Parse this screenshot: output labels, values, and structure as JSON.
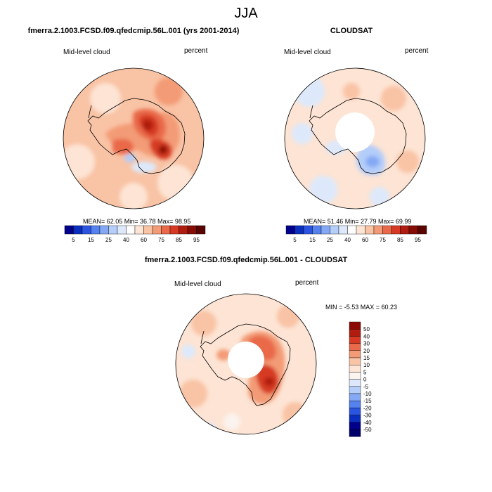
{
  "main_title": "JJA",
  "panels": [
    {
      "title": "fmerra.2.1003.FCSD.f09.qfedcmip.56L.001 (yrs 2001-2014)",
      "left_label": "Mid-level cloud",
      "right_label": "percent",
      "stats": "MEAN=  62.05   Min=  36.78   Max=  98.95"
    },
    {
      "title": "CLOUDSAT",
      "left_label": "Mid-level cloud",
      "right_label": "percent",
      "stats": "MEAN=  51.46   Min=  27.79   Max=  69.99"
    },
    {
      "title": "fmerra.2.1003.FCSD.f09.qfedcmip.56L.001 - CLOUDSAT",
      "left_label": "Mid-level cloud",
      "right_label": "percent",
      "stats": "MIN =  -5.53 MAX =  60.23"
    }
  ],
  "chart_data": [
    {
      "type": "heatmap",
      "title": "fmerra.2.1003.FCSD.f09.qfedcmip.56L.001 (yrs 2001-2014)",
      "projection": "south polar stereographic",
      "variable": "Mid-level cloud",
      "units": "percent",
      "stats": {
        "mean": 62.05,
        "min": 36.78,
        "max": 98.95
      },
      "colorbar": {
        "orientation": "horizontal",
        "tick_labels": [
          "5",
          "15",
          "25",
          "40",
          "60",
          "75",
          "85",
          "95"
        ],
        "colors": [
          "#00008b",
          "#0a2fbe",
          "#2b55e0",
          "#5582ee",
          "#84a8f4",
          "#b4cdf9",
          "#dde9fb",
          "#ffffff",
          "#fde4d4",
          "#f9c3a5",
          "#f39b76",
          "#e9694a",
          "#d63a24",
          "#b01c10",
          "#850d06",
          "#5a0402"
        ]
      }
    },
    {
      "type": "heatmap",
      "title": "CLOUDSAT",
      "projection": "south polar stereographic",
      "variable": "Mid-level cloud",
      "units": "percent",
      "stats": {
        "mean": 51.46,
        "min": 27.79,
        "max": 69.99
      },
      "colorbar": {
        "orientation": "horizontal",
        "tick_labels": [
          "5",
          "15",
          "25",
          "40",
          "60",
          "75",
          "85",
          "95"
        ],
        "colors": [
          "#00008b",
          "#0a2fbe",
          "#2b55e0",
          "#5582ee",
          "#84a8f4",
          "#b4cdf9",
          "#dde9fb",
          "#ffffff",
          "#fde4d4",
          "#f9c3a5",
          "#f39b76",
          "#e9694a",
          "#d63a24",
          "#b01c10",
          "#850d06",
          "#5a0402"
        ]
      }
    },
    {
      "type": "heatmap",
      "title": "fmerra.2.1003.FCSD.f09.qfedcmip.56L.001 - CLOUDSAT",
      "projection": "south polar stereographic",
      "variable": "Mid-level cloud",
      "units": "percent",
      "stats": {
        "min": -5.53,
        "max": 60.23
      },
      "colorbar": {
        "orientation": "vertical",
        "tick_labels": [
          "50",
          "40",
          "30",
          "20",
          "15",
          "10",
          "5",
          "0",
          "-5",
          "-10",
          "-15",
          "-20",
          "-30",
          "-40",
          "-50"
        ],
        "colors": [
          "#8b0a04",
          "#b01c10",
          "#d63a24",
          "#e9694a",
          "#f39b76",
          "#f9c3a5",
          "#fde4d4",
          "#fbf3ee",
          "#dde9fb",
          "#b4cdf9",
          "#84a8f4",
          "#5582ee",
          "#2b55e0",
          "#0a2fbe",
          "#00008b",
          "#00006a"
        ]
      }
    }
  ]
}
